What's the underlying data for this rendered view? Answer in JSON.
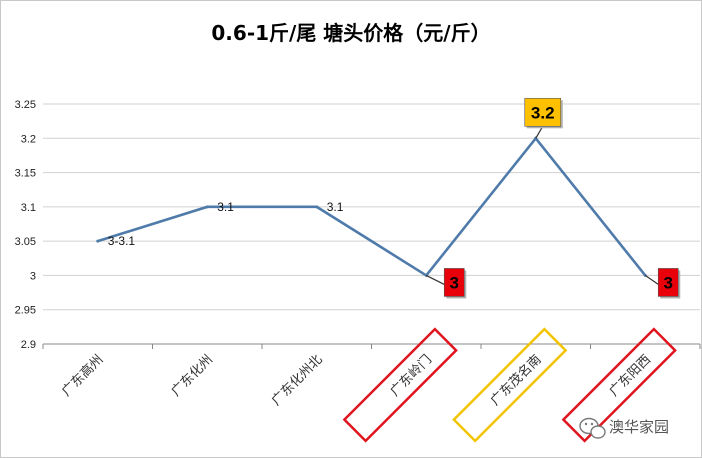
{
  "chart_data": {
    "type": "line",
    "title": "0.6-1斤/尾  塘头价格（元/斤）",
    "categories": [
      "广东高州",
      "广东化州",
      "广东化州北",
      "广东岭门",
      "广东茂名南",
      "广东阳西"
    ],
    "series": [
      {
        "values": [
          3.05,
          3.1,
          3.1,
          3.0,
          3.2,
          3.0
        ],
        "color": "#4f7bab"
      }
    ],
    "data_labels": [
      "3-3.1",
      "3.1",
      "3.1",
      "3",
      "3.2",
      "3"
    ],
    "ylim": [
      2.9,
      3.25
    ],
    "yticks": [
      "2.9",
      "2.95",
      "3",
      "3.05",
      "3.1",
      "3.15",
      "3.2",
      "3.25"
    ],
    "gridlines": true,
    "highlighted_categories": [
      {
        "index": 3,
        "color": "#e0141e"
      },
      {
        "index": 4,
        "color": "#f2c400"
      },
      {
        "index": 5,
        "color": "#e0141e"
      }
    ],
    "callouts": [
      {
        "index": 3,
        "bg": "#e8000b",
        "color": "#000000"
      },
      {
        "index": 4,
        "bg": "#ffc000",
        "color": "#000000"
      },
      {
        "index": 5,
        "bg": "#e8000b",
        "color": "#000000"
      }
    ]
  },
  "watermark": {
    "text": "澳华家园",
    "icon": "wechat-icon"
  }
}
